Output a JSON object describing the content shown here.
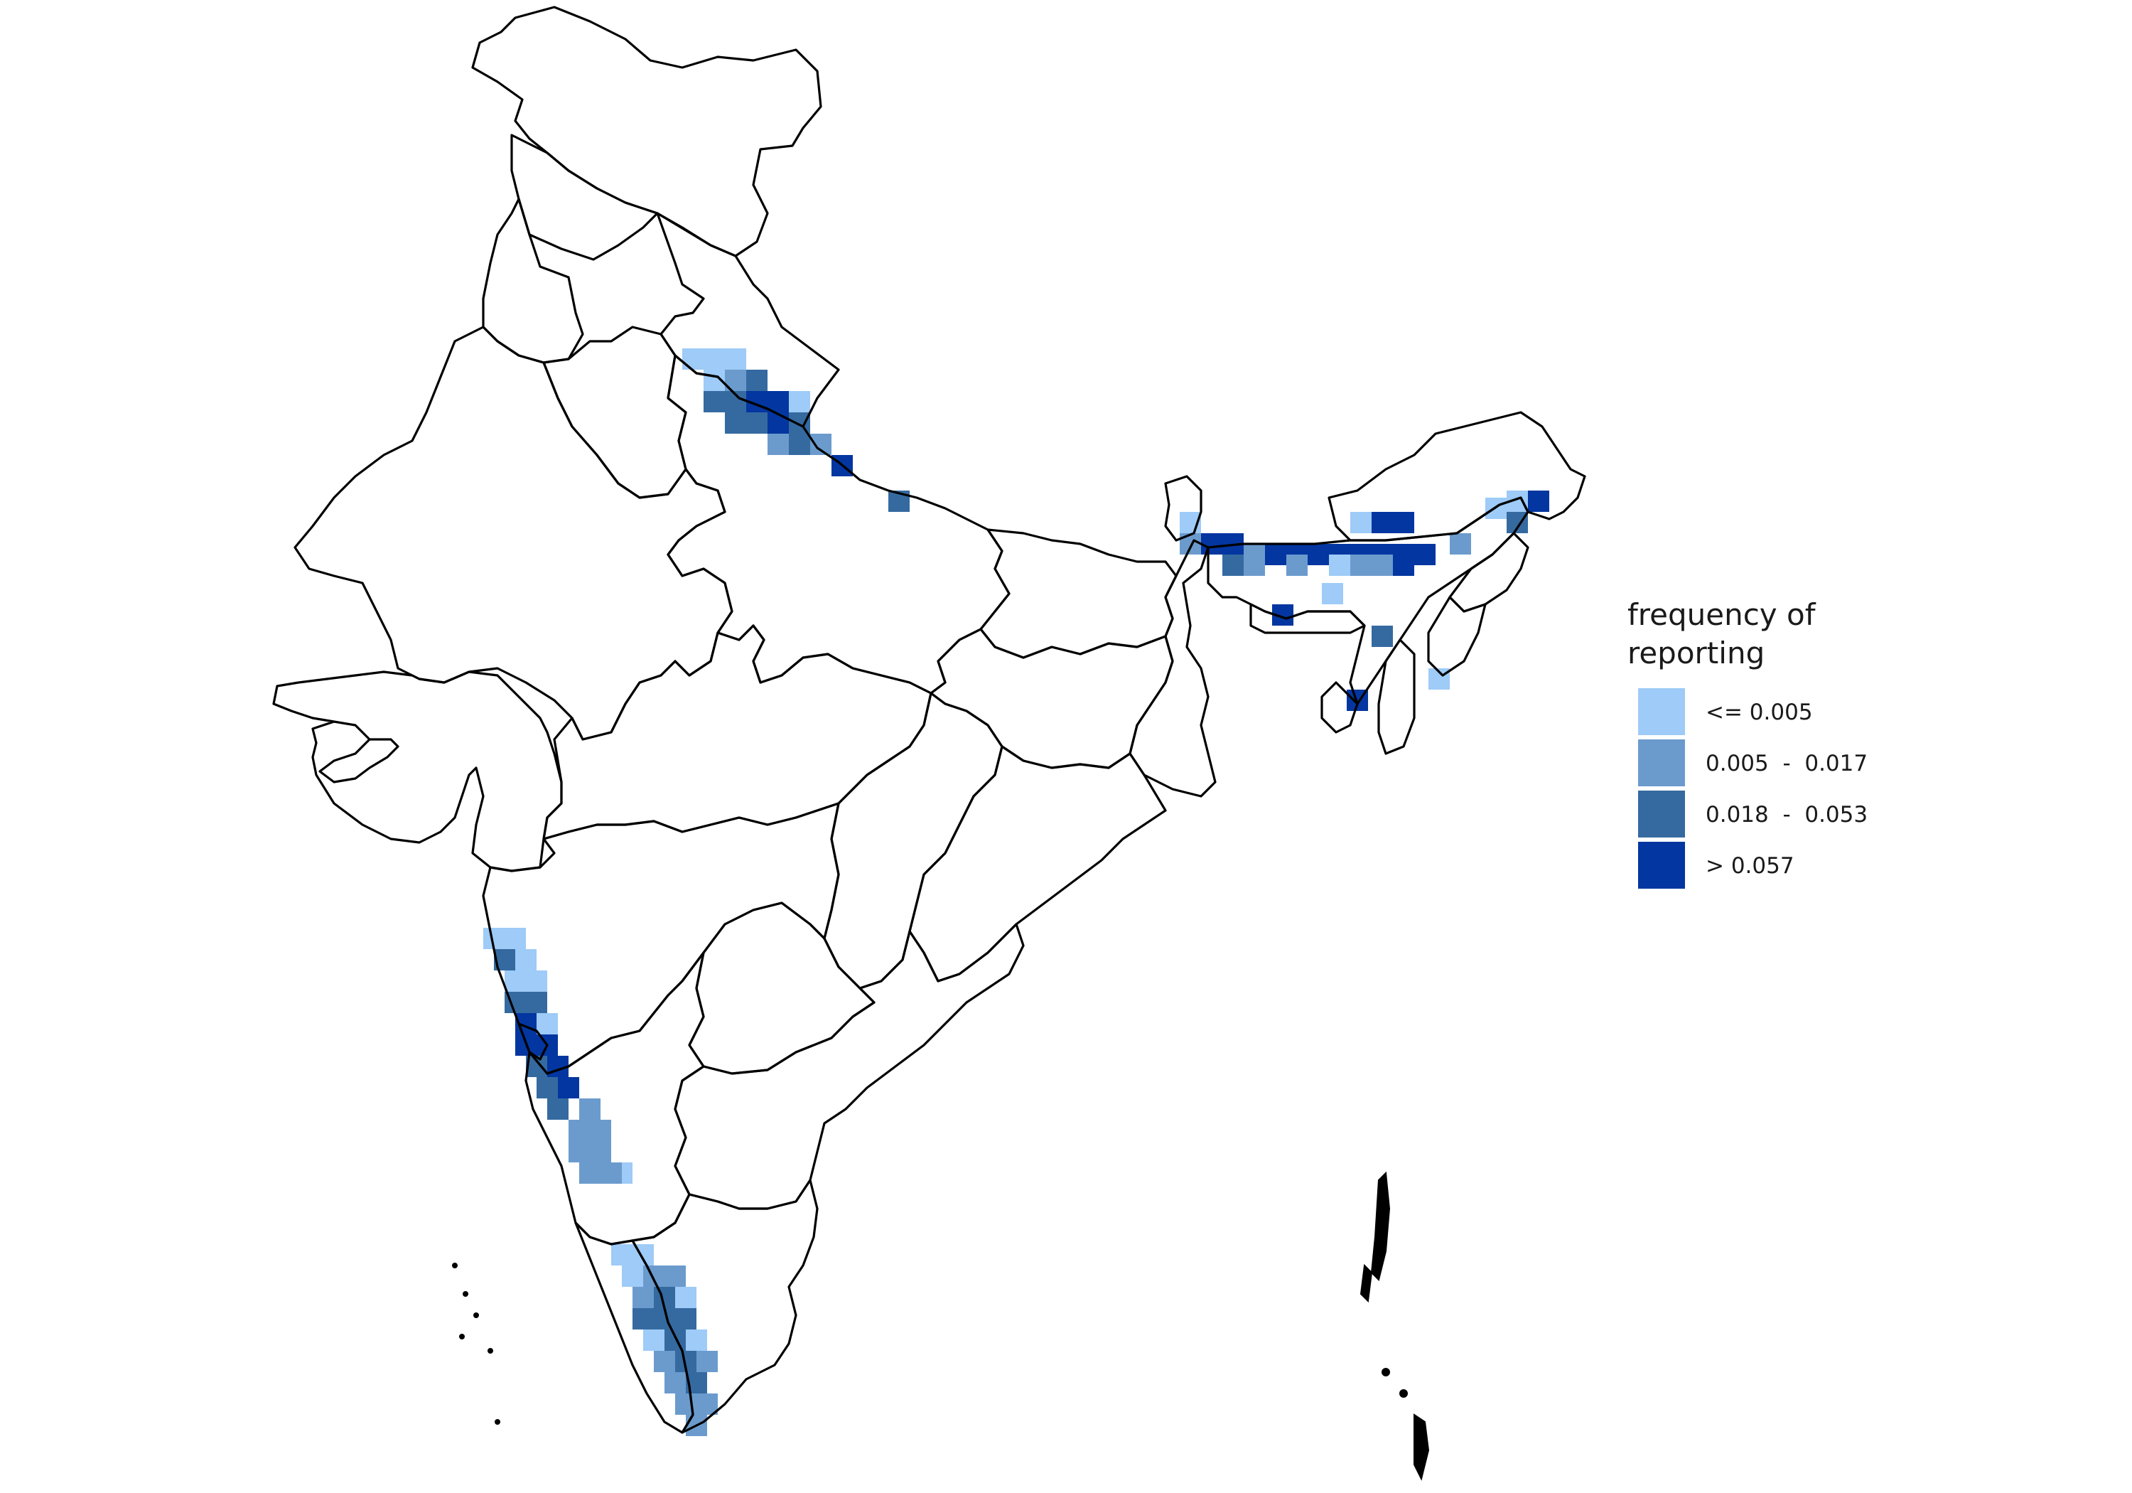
{
  "legend": {
    "title_line1": "frequency of",
    "title_line2": "reporting",
    "classes": [
      {
        "label": "<= 0.005",
        "color": "#9ecbf7"
      },
      {
        "label": "0.005  -  0.017",
        "color": "#6b9bcd"
      },
      {
        "label": "0.018  -  0.053",
        "color": "#356aa0"
      },
      {
        "label": "> 0.057",
        "color": "#0336a0"
      }
    ]
  }
}
